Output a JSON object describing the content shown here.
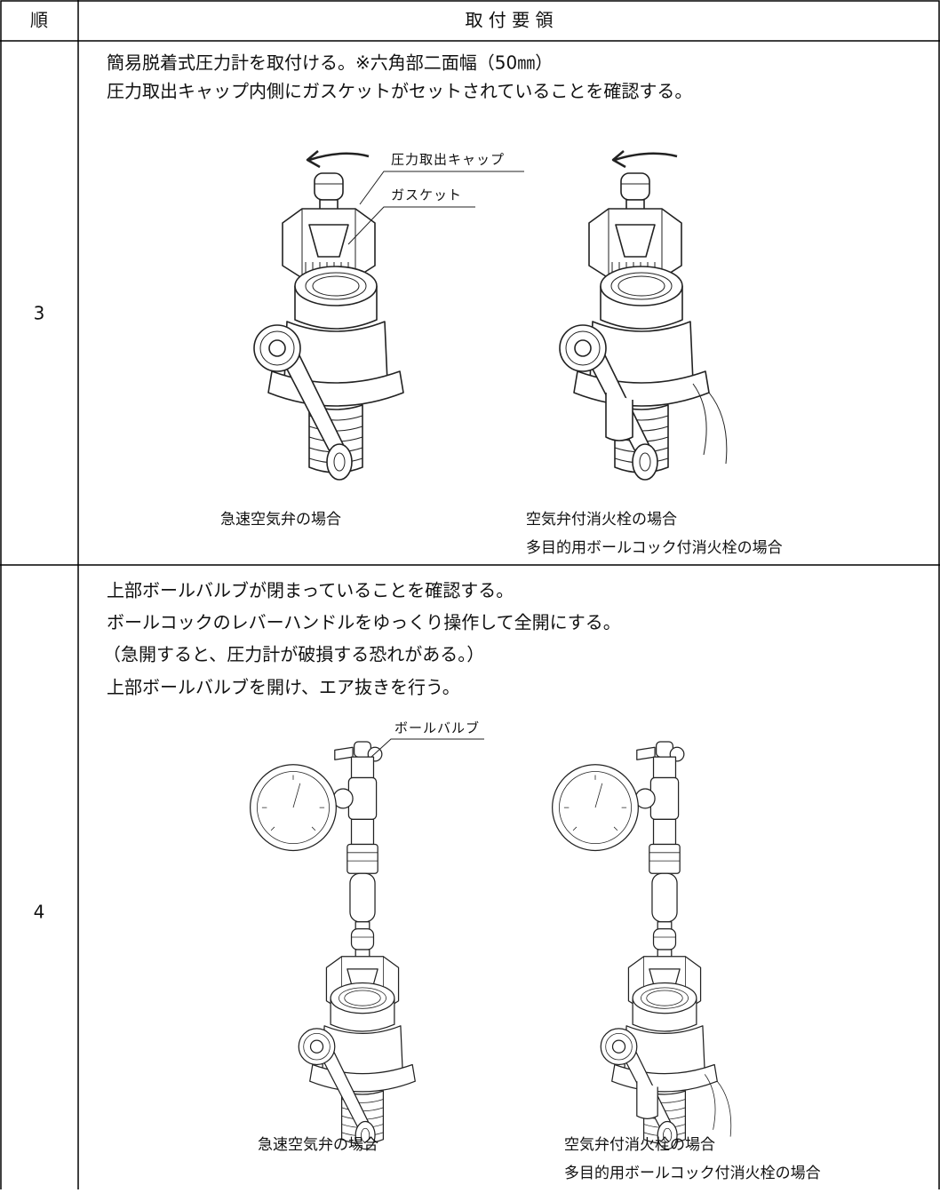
{
  "header": {
    "columns": [
      "順",
      "取 付 要 領"
    ]
  },
  "rows": [
    {
      "step": "3",
      "instructions": [
        "簡易脱着式圧力計を取付ける。※六角部二面幅（50㎜）",
        "圧力取出キャップ内側にガスケットがセットされていることを確認する。"
      ],
      "callouts": [
        "圧力取出キャップ",
        "ガスケット"
      ],
      "captions": [
        [
          "急速空気弁の場合"
        ],
        [
          "空気弁付消火栓の場合",
          "多目的用ボールコック付消火栓の場合"
        ]
      ]
    },
    {
      "step": "4",
      "instructions": [
        "上部ボールバルブが閉まっていることを確認する。",
        "ボールコックのレバーハンドルをゆっくり操作して全開にする。",
        "（急開すると、圧力計が破損する恐れがある。）",
        "上部ボールバルブを開け、エア抜きを行う。"
      ],
      "callouts": [
        "ボールバルブ"
      ],
      "captions": [
        [
          "急速空気弁の場合"
        ],
        [
          "空気弁付消火栓の場合",
          "多目的用ボールコック付消火栓の場合"
        ]
      ]
    }
  ]
}
